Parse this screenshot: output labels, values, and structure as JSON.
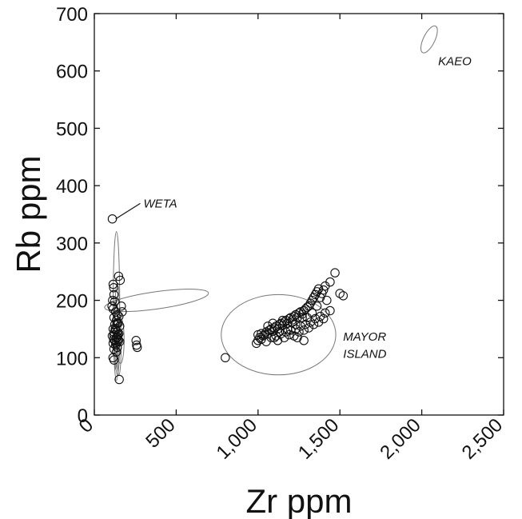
{
  "chart_data": {
    "type": "scatter",
    "title": "",
    "xlabel": "Zr ppm",
    "ylabel": "Rb ppm",
    "xlim": [
      0,
      2500
    ],
    "ylim": [
      0,
      700
    ],
    "x_ticks": [
      0,
      500,
      1000,
      1500,
      2000,
      2500
    ],
    "x_tick_labels": [
      "0",
      "500",
      "1,000",
      "1,500",
      "2,000",
      "2,500"
    ],
    "y_ticks": [
      0,
      100,
      200,
      300,
      400,
      500,
      600,
      700
    ],
    "y_tick_labels": [
      "0",
      "100",
      "200",
      "300",
      "400",
      "500",
      "600",
      "700"
    ],
    "grid": false,
    "legend": "none",
    "annotations": [
      {
        "text": "WETA",
        "x": 300,
        "y": 362
      },
      {
        "text": "KAEO",
        "x": 2100,
        "y": 610
      },
      {
        "text": "MAYOR",
        "x": 1520,
        "y": 130
      },
      {
        "text": "ISLAND",
        "x": 1520,
        "y": 100
      }
    ],
    "ellipses": [
      {
        "group": "WETA",
        "cx": 135,
        "cy": 190,
        "rx": 20,
        "ry": 130,
        "angle": 0
      },
      {
        "group": "WETA",
        "cx": 380,
        "cy": 200,
        "rx": 320,
        "ry": 15,
        "angle": 8
      },
      {
        "group": "WETA",
        "cx": 140,
        "cy": 150,
        "rx": 16,
        "ry": 80,
        "angle": 0
      },
      {
        "group": "WETA",
        "cx": 150,
        "cy": 125,
        "rx": 14,
        "ry": 55,
        "angle": 0
      },
      {
        "group": "WETA",
        "cx": 160,
        "cy": 130,
        "rx": 22,
        "ry": 40,
        "angle": 0
      },
      {
        "group": "WETA",
        "cx": 130,
        "cy": 140,
        "rx": 12,
        "ry": 60,
        "angle": 0
      },
      {
        "group": "MAYOR ISLAND",
        "cx": 1125,
        "cy": 140,
        "rx": 350,
        "ry": 70,
        "angle": 0
      },
      {
        "group": "KAEO",
        "cx": 2045,
        "cy": 655,
        "rx": 90,
        "ry": 10,
        "angle": 64
      }
    ],
    "series": [
      {
        "points": [
          [
            110,
            342
          ],
          [
            115,
            228
          ],
          [
            118,
            222
          ],
          [
            120,
            210
          ],
          [
            112,
            200
          ],
          [
            125,
            198
          ],
          [
            108,
            190
          ],
          [
            115,
            185
          ],
          [
            130,
            180
          ],
          [
            140,
            175
          ],
          [
            150,
            172
          ],
          [
            120,
            170
          ],
          [
            135,
            165
          ],
          [
            145,
            160
          ],
          [
            125,
            158
          ],
          [
            155,
            155
          ],
          [
            115,
            150
          ],
          [
            130,
            148
          ],
          [
            140,
            145
          ],
          [
            150,
            142
          ],
          [
            120,
            140
          ],
          [
            110,
            138
          ],
          [
            135,
            135
          ],
          [
            145,
            132
          ],
          [
            125,
            130
          ],
          [
            155,
            128
          ],
          [
            115,
            125
          ],
          [
            130,
            122
          ],
          [
            140,
            118
          ],
          [
            120,
            115
          ],
          [
            135,
            110
          ],
          [
            145,
            140
          ],
          [
            128,
            150
          ],
          [
            138,
            160
          ],
          [
            148,
            130
          ],
          [
            118,
            132
          ],
          [
            132,
            126
          ],
          [
            142,
            136
          ],
          [
            122,
            144
          ],
          [
            114,
            100
          ],
          [
            120,
            96
          ],
          [
            148,
            242
          ],
          [
            158,
            235
          ],
          [
            165,
            190
          ],
          [
            170,
            180
          ],
          [
            152,
            62
          ],
          [
            255,
            130
          ],
          [
            258,
            122
          ],
          [
            262,
            118
          ],
          [
            800,
            100
          ],
          [
            990,
            125
          ],
          [
            1000,
            130
          ],
          [
            1010,
            135
          ],
          [
            1020,
            132
          ],
          [
            1030,
            138
          ],
          [
            1040,
            140
          ],
          [
            1050,
            145
          ],
          [
            1060,
            142
          ],
          [
            1070,
            148
          ],
          [
            1080,
            150
          ],
          [
            1090,
            146
          ],
          [
            1100,
            152
          ],
          [
            1110,
            155
          ],
          [
            1120,
            150
          ],
          [
            1130,
            158
          ],
          [
            1140,
            160
          ],
          [
            1150,
            156
          ],
          [
            1160,
            162
          ],
          [
            1170,
            165
          ],
          [
            1180,
            160
          ],
          [
            1190,
            168
          ],
          [
            1200,
            170
          ],
          [
            1210,
            166
          ],
          [
            1220,
            172
          ],
          [
            1230,
            175
          ],
          [
            1240,
            170
          ],
          [
            1250,
            178
          ],
          [
            1260,
            180
          ],
          [
            1270,
            176
          ],
          [
            1280,
            182
          ],
          [
            1290,
            185
          ],
          [
            1300,
            188
          ],
          [
            1310,
            190
          ],
          [
            1320,
            195
          ],
          [
            1330,
            200
          ],
          [
            1340,
            205
          ],
          [
            1350,
            210
          ],
          [
            1360,
            215
          ],
          [
            1370,
            220
          ],
          [
            1380,
            205
          ],
          [
            1390,
            212
          ],
          [
            1400,
            218
          ],
          [
            1410,
            225
          ],
          [
            1420,
            200
          ],
          [
            1440,
            232
          ],
          [
            1470,
            248
          ],
          [
            1500,
            212
          ],
          [
            1520,
            208
          ],
          [
            1050,
            128
          ],
          [
            1080,
            135
          ],
          [
            1110,
            138
          ],
          [
            1140,
            142
          ],
          [
            1170,
            145
          ],
          [
            1200,
            148
          ],
          [
            1230,
            150
          ],
          [
            1260,
            155
          ],
          [
            1290,
            158
          ],
          [
            1320,
            162
          ],
          [
            1350,
            168
          ],
          [
            1380,
            172
          ],
          [
            1410,
            178
          ],
          [
            1440,
            182
          ],
          [
            1120,
            130
          ],
          [
            1160,
            135
          ],
          [
            1190,
            140
          ],
          [
            1220,
            138
          ],
          [
            1250,
            145
          ],
          [
            1280,
            148
          ],
          [
            1310,
            152
          ],
          [
            1340,
            158
          ],
          [
            1370,
            162
          ],
          [
            1400,
            168
          ],
          [
            1060,
            155
          ],
          [
            1090,
            160
          ],
          [
            1150,
            165
          ],
          [
            1210,
            162
          ],
          [
            1270,
            170
          ],
          [
            1230,
            158
          ],
          [
            1330,
            178
          ],
          [
            1280,
            130
          ],
          [
            1240,
            135
          ],
          [
            1180,
            150
          ],
          [
            1020,
            142
          ],
          [
            1000,
            140
          ],
          [
            1100,
            135
          ],
          [
            1130,
            145
          ],
          [
            1360,
            190
          ],
          [
            1300,
            170
          ]
        ]
      }
    ]
  }
}
